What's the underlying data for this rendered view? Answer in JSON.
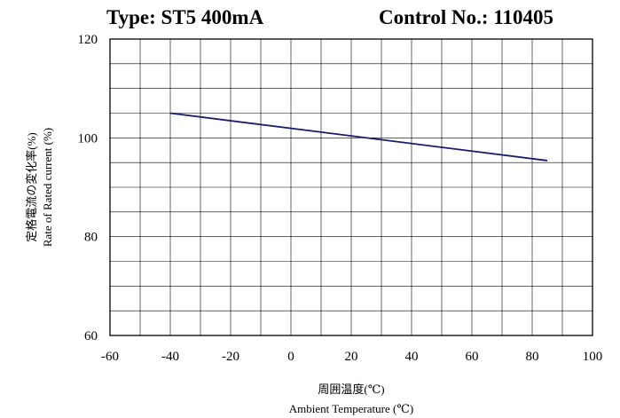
{
  "header": {
    "type_label": "Type: ST5 400mA",
    "control_label": "Control No.: 110405"
  },
  "chart_data": {
    "type": "line",
    "xlabel_jp": "周囲温度(℃)",
    "xlabel_en": "Ambient Temperature (℃)",
    "ylabel_jp": "定格電流の変化率(%)",
    "ylabel_en": "Rate of Rated current (%)",
    "xlim": [
      -60,
      100
    ],
    "ylim": [
      60,
      120
    ],
    "x_ticks": [
      -60,
      -40,
      -20,
      0,
      20,
      40,
      60,
      80,
      100
    ],
    "y_ticks": [
      60,
      80,
      100,
      120
    ],
    "x_grid_step": 10,
    "y_grid_step": 5,
    "grid": true,
    "series": [
      {
        "color": "#1a1a6e",
        "x": [
          -40,
          85
        ],
        "y": [
          105,
          95.4
        ]
      }
    ]
  }
}
